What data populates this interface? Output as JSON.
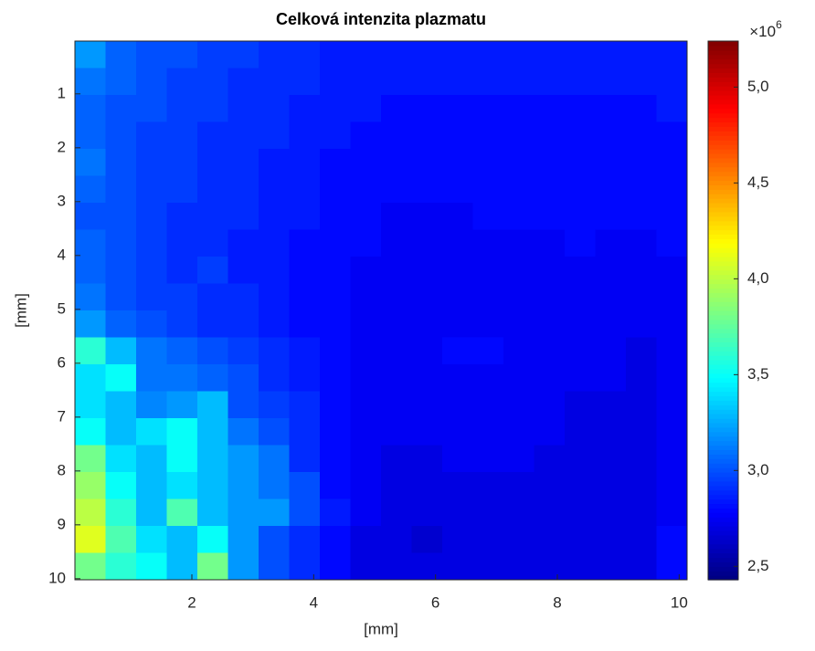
{
  "chart_data": {
    "type": "heatmap",
    "title": "Celková intenzita plazmatu",
    "xlabel": "[mm]",
    "ylabel": "[mm]",
    "colormap": "jet",
    "xlim": [
      0.08,
      10.13
    ],
    "ylim": [
      0.02,
      10.02
    ],
    "y_reversed": true,
    "xticks": [
      2,
      4,
      6,
      8,
      10
    ],
    "yticks": [
      1,
      2,
      3,
      4,
      5,
      6,
      7,
      8,
      9,
      10
    ],
    "clim": [
      2.43,
      5.24
    ],
    "cticks": [
      {
        "value": 2.5,
        "label": "2,5"
      },
      {
        "value": 3.0,
        "label": "3,0"
      },
      {
        "value": 3.5,
        "label": "3,5"
      },
      {
        "value": 4.0,
        "label": "4,0"
      },
      {
        "value": 4.5,
        "label": "4,5"
      },
      {
        "value": 5.0,
        "label": "5,0"
      }
    ],
    "colorbar_multiplier": {
      "base": "×10",
      "exponent": "6"
    },
    "z": [
      [
        3.2,
        3.05,
        3.0,
        3.0,
        2.95,
        2.95,
        2.9,
        2.9,
        2.85,
        2.85,
        2.85,
        2.85,
        2.85,
        2.85,
        2.85,
        2.85,
        2.85,
        2.85,
        2.85,
        2.85
      ],
      [
        3.1,
        3.05,
        3.0,
        2.95,
        2.95,
        2.9,
        2.9,
        2.9,
        2.85,
        2.85,
        2.85,
        2.85,
        2.85,
        2.85,
        2.85,
        2.85,
        2.85,
        2.85,
        2.85,
        2.85
      ],
      [
        3.05,
        3.0,
        3.0,
        2.95,
        2.95,
        2.9,
        2.9,
        2.85,
        2.85,
        2.85,
        2.8,
        2.8,
        2.8,
        2.8,
        2.8,
        2.8,
        2.8,
        2.8,
        2.8,
        2.85
      ],
      [
        3.05,
        3.0,
        2.95,
        2.95,
        2.9,
        2.9,
        2.9,
        2.85,
        2.85,
        2.8,
        2.8,
        2.8,
        2.8,
        2.8,
        2.8,
        2.8,
        2.8,
        2.8,
        2.8,
        2.8
      ],
      [
        3.1,
        3.0,
        2.95,
        2.95,
        2.9,
        2.9,
        2.85,
        2.85,
        2.8,
        2.8,
        2.8,
        2.8,
        2.8,
        2.8,
        2.8,
        2.8,
        2.8,
        2.8,
        2.8,
        2.8
      ],
      [
        3.05,
        3.0,
        2.95,
        2.95,
        2.9,
        2.9,
        2.85,
        2.85,
        2.8,
        2.8,
        2.8,
        2.8,
        2.8,
        2.8,
        2.8,
        2.8,
        2.8,
        2.8,
        2.8,
        2.8
      ],
      [
        3.0,
        3.0,
        2.95,
        2.9,
        2.9,
        2.9,
        2.85,
        2.85,
        2.8,
        2.8,
        2.75,
        2.75,
        2.75,
        2.8,
        2.8,
        2.8,
        2.8,
        2.8,
        2.8,
        2.8
      ],
      [
        3.05,
        3.0,
        2.95,
        2.9,
        2.9,
        2.85,
        2.85,
        2.8,
        2.8,
        2.8,
        2.75,
        2.75,
        2.75,
        2.75,
        2.75,
        2.75,
        2.8,
        2.75,
        2.75,
        2.8
      ],
      [
        3.05,
        3.0,
        2.95,
        2.9,
        2.95,
        2.85,
        2.85,
        2.8,
        2.8,
        2.75,
        2.75,
        2.75,
        2.75,
        2.75,
        2.75,
        2.75,
        2.75,
        2.75,
        2.75,
        2.75
      ],
      [
        3.1,
        3.0,
        2.95,
        2.95,
        2.9,
        2.9,
        2.85,
        2.8,
        2.8,
        2.75,
        2.75,
        2.75,
        2.75,
        2.75,
        2.75,
        2.75,
        2.75,
        2.75,
        2.75,
        2.75
      ],
      [
        3.2,
        3.05,
        3.0,
        2.95,
        2.9,
        2.9,
        2.85,
        2.8,
        2.8,
        2.75,
        2.75,
        2.75,
        2.75,
        2.75,
        2.75,
        2.75,
        2.75,
        2.75,
        2.75,
        2.75
      ],
      [
        3.6,
        3.3,
        3.1,
        3.05,
        3.0,
        2.95,
        2.9,
        2.85,
        2.8,
        2.75,
        2.75,
        2.75,
        2.8,
        2.8,
        2.75,
        2.75,
        2.75,
        2.75,
        2.7,
        2.75
      ],
      [
        3.4,
        3.5,
        3.1,
        3.1,
        3.05,
        3.0,
        2.9,
        2.85,
        2.8,
        2.75,
        2.75,
        2.75,
        2.75,
        2.75,
        2.75,
        2.75,
        2.75,
        2.75,
        2.7,
        2.75
      ],
      [
        3.4,
        3.3,
        3.15,
        3.2,
        3.3,
        3.0,
        2.95,
        2.9,
        2.8,
        2.75,
        2.75,
        2.75,
        2.75,
        2.75,
        2.75,
        2.75,
        2.7,
        2.7,
        2.7,
        2.75
      ],
      [
        3.5,
        3.3,
        3.4,
        3.5,
        3.3,
        3.1,
        3.0,
        2.9,
        2.8,
        2.75,
        2.75,
        2.75,
        2.75,
        2.75,
        2.75,
        2.75,
        2.7,
        2.7,
        2.7,
        2.75
      ],
      [
        3.8,
        3.4,
        3.3,
        3.5,
        3.3,
        3.2,
        3.1,
        2.9,
        2.8,
        2.75,
        2.7,
        2.7,
        2.75,
        2.75,
        2.75,
        2.7,
        2.7,
        2.7,
        2.7,
        2.75
      ],
      [
        3.9,
        3.5,
        3.3,
        3.4,
        3.3,
        3.2,
        3.1,
        3.0,
        2.8,
        2.75,
        2.7,
        2.7,
        2.7,
        2.7,
        2.7,
        2.7,
        2.7,
        2.7,
        2.7,
        2.75
      ],
      [
        4.0,
        3.6,
        3.3,
        3.7,
        3.3,
        3.2,
        3.2,
        3.0,
        2.85,
        2.75,
        2.7,
        2.7,
        2.7,
        2.7,
        2.7,
        2.7,
        2.7,
        2.7,
        2.7,
        2.75
      ],
      [
        4.1,
        3.7,
        3.4,
        3.3,
        3.5,
        3.2,
        3.0,
        2.9,
        2.8,
        2.7,
        2.7,
        2.65,
        2.7,
        2.7,
        2.7,
        2.7,
        2.7,
        2.7,
        2.7,
        2.8
      ],
      [
        3.8,
        3.6,
        3.5,
        3.3,
        3.8,
        3.2,
        3.0,
        2.9,
        2.8,
        2.7,
        2.7,
        2.7,
        2.7,
        2.7,
        2.7,
        2.7,
        2.7,
        2.7,
        2.7,
        2.8
      ]
    ]
  }
}
